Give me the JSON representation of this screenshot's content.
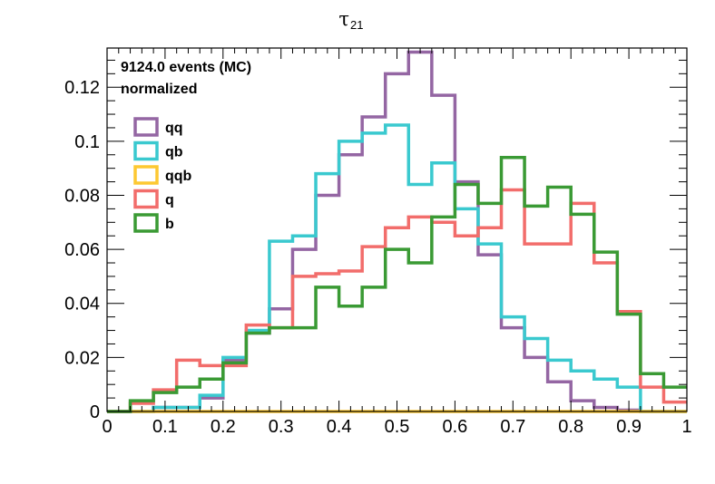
{
  "chart_data": {
    "type": "histogram",
    "title": "τ",
    "title_subscript": "21",
    "annotations": [
      "9124.0 events (MC)",
      "normalized"
    ],
    "xlim": [
      0,
      1
    ],
    "ylim": [
      0,
      0.1345
    ],
    "x_ticks": [
      "0",
      "0.1",
      "0.2",
      "0.3",
      "0.4",
      "0.5",
      "0.6",
      "0.7",
      "0.8",
      "0.9",
      "1"
    ],
    "x_tick_values": [
      0,
      0.1,
      0.2,
      0.3,
      0.4,
      0.5,
      0.6,
      0.7,
      0.8,
      0.9,
      1.0
    ],
    "y_ticks": [
      "0",
      "0.02",
      "0.04",
      "0.06",
      "0.08",
      "0.1",
      "0.12"
    ],
    "y_tick_values": [
      0,
      0.02,
      0.04,
      0.06,
      0.08,
      0.1,
      0.12
    ],
    "bin_edges": [
      0,
      0.04,
      0.08,
      0.12,
      0.16,
      0.2,
      0.24,
      0.28,
      0.32,
      0.36,
      0.4,
      0.44,
      0.48,
      0.52,
      0.56,
      0.6,
      0.64,
      0.68,
      0.72,
      0.76,
      0.8,
      0.84,
      0.88,
      0.92,
      0.96,
      1.0
    ],
    "legend_position": "top-left",
    "series": [
      {
        "name": "qq",
        "color": "#9466a3",
        "values": [
          0,
          0,
          0.0015,
          0.0015,
          0.005,
          0.019,
          0.029,
          0.038,
          0.06,
          0.08,
          0.095,
          0.109,
          0.125,
          0.133,
          0.117,
          0.085,
          0.058,
          0.031,
          0.02,
          0.011,
          0.004,
          0.0015,
          0.0005,
          0,
          0
        ]
      },
      {
        "name": "qb",
        "color": "#3ac9cf",
        "values": [
          0,
          0,
          0.0015,
          0.0015,
          0.006,
          0.02,
          0.03,
          0.063,
          0.065,
          0.088,
          0.1,
          0.103,
          0.106,
          0.084,
          0.092,
          0.075,
          0.062,
          0.035,
          0.027,
          0.019,
          0.015,
          0.012,
          0.009,
          0,
          0
        ]
      },
      {
        "name": "qqb",
        "color": "#fdc832",
        "values": [
          0,
          0,
          0,
          0,
          0,
          0,
          0,
          0,
          0,
          0,
          0,
          0,
          0,
          0,
          0,
          0,
          0,
          0,
          0,
          0,
          0,
          0,
          0,
          0,
          0
        ]
      },
      {
        "name": "q",
        "color": "#f26d6b",
        "values": [
          0,
          0.003,
          0.008,
          0.019,
          0.017,
          0.017,
          0.032,
          0.031,
          0.05,
          0.051,
          0.052,
          0.061,
          0.068,
          0.072,
          0.07,
          0.065,
          0.068,
          0.082,
          0.062,
          0.062,
          0.077,
          0.055,
          0.037,
          0.009,
          0.0035
        ]
      },
      {
        "name": "b",
        "color": "#3a9a34",
        "values": [
          0,
          0.004,
          0.007,
          0.009,
          0.012,
          0.018,
          0.029,
          0.031,
          0.031,
          0.046,
          0.039,
          0.046,
          0.06,
          0.055,
          0.072,
          0.084,
          0.077,
          0.094,
          0.076,
          0.083,
          0.073,
          0.059,
          0.036,
          0.014,
          0.009
        ]
      }
    ]
  }
}
